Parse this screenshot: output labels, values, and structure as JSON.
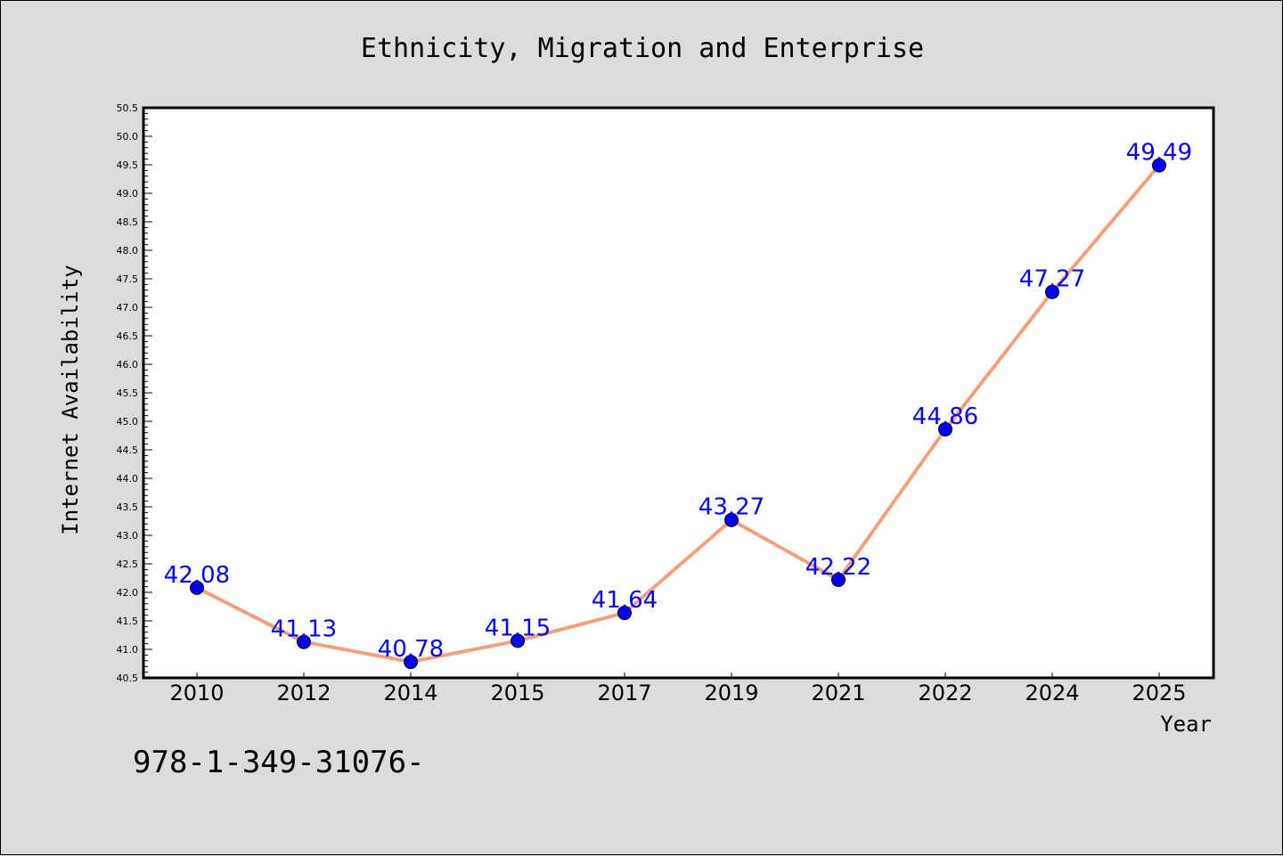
{
  "chart_data": {
    "type": "line",
    "title": "Ethnicity, Migration and Enterprise",
    "xlabel": "Year",
    "ylabel": "Internet Availability",
    "categories": [
      "2010",
      "2012",
      "2014",
      "2015",
      "2017",
      "2019",
      "2021",
      "2022",
      "2024",
      "2025"
    ],
    "series": [
      {
        "values": [
          42.08,
          41.13,
          40.78,
          41.15,
          41.64,
          43.27,
          42.22,
          44.86,
          47.27,
          49.49
        ],
        "line_color": "#f4a07a",
        "marker_color": "#0000ee"
      }
    ],
    "data_labels": [
      "42.08",
      "41.13",
      "40.78",
      "41.15",
      "41.64",
      "43.27",
      "42.22",
      "44.86",
      "47.27",
      "49.49"
    ],
    "ylim": [
      40.5,
      50.5
    ],
    "yticks": [
      "40.5",
      "41.0",
      "41.5",
      "42.0",
      "42.5",
      "43.0",
      "43.5",
      "44.0",
      "44.5",
      "45.0",
      "45.5",
      "46.0",
      "46.5",
      "47.0",
      "47.5",
      "48.0",
      "48.5",
      "49.0",
      "49.5",
      "50.0",
      "50.5"
    ],
    "grid": false,
    "legend": "none",
    "label_color": "#0000ff"
  },
  "footer_text": "978-1-349-31076-"
}
